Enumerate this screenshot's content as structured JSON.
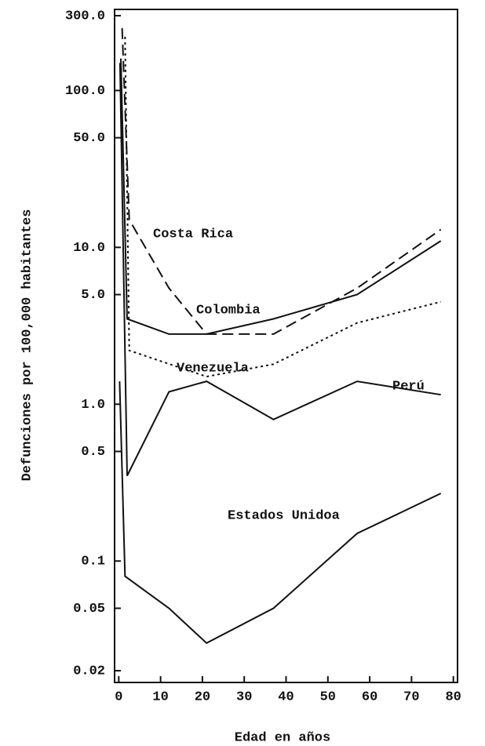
{
  "chart_data": {
    "type": "line",
    "x_label": "Edad en años",
    "y_label": "Defunciones por 100,000 habitantes",
    "log_y": true,
    "xlim": [
      -1,
      81
    ],
    "xticks": [
      0,
      10,
      20,
      30,
      40,
      50,
      60,
      70,
      80
    ],
    "ylim": [
      0.02,
      300
    ],
    "yticks": [
      0.02,
      0.05,
      0.1,
      0.5,
      {
        "value": 1,
        "label": "1.0"
      },
      {
        "value": 5,
        "label": "5.0"
      },
      {
        "value": 10,
        "label": "10.0"
      },
      {
        "value": 50,
        "label": "50.0"
      },
      {
        "value": 100,
        "label": "100.0"
      },
      {
        "value": 300,
        "label": "300.0"
      }
    ],
    "series": [
      {
        "name": "Costa Rica",
        "color": "#111111",
        "dash": "dashed",
        "x": [
          0.8,
          2.5,
          12,
          21,
          37,
          57,
          77
        ],
        "values": [
          250,
          15,
          5.5,
          2.8,
          2.8,
          5.5,
          13
        ]
      },
      {
        "name": "Colombia",
        "color": "#111111",
        "dash": "solid",
        "x": [
          0.5,
          2,
          12,
          21,
          37,
          57,
          77
        ],
        "values": [
          160,
          3.5,
          2.8,
          2.8,
          3.5,
          5,
          11
        ]
      },
      {
        "name": "Venezuela",
        "color": "#111111",
        "dash": "dotted",
        "x": [
          1.5,
          2.5,
          21,
          37,
          57,
          77
        ],
        "values": [
          220,
          2.2,
          1.5,
          1.8,
          3.3,
          4.5
        ]
      },
      {
        "name": "Perú",
        "color": "#111111",
        "dash": "solid",
        "x": [
          0.3,
          2,
          12,
          21,
          37,
          57,
          77
        ],
        "values": [
          150,
          0.35,
          1.2,
          1.4,
          0.8,
          1.4,
          1.15
        ]
      },
      {
        "name": "Estados Unidoa",
        "color": "#111111",
        "dash": "solid",
        "x": [
          0.2,
          1.5,
          12,
          21,
          37,
          57,
          77
        ],
        "values": [
          1.4,
          0.08,
          0.05,
          0.03,
          0.05,
          0.15,
          0.27
        ]
      }
    ]
  }
}
